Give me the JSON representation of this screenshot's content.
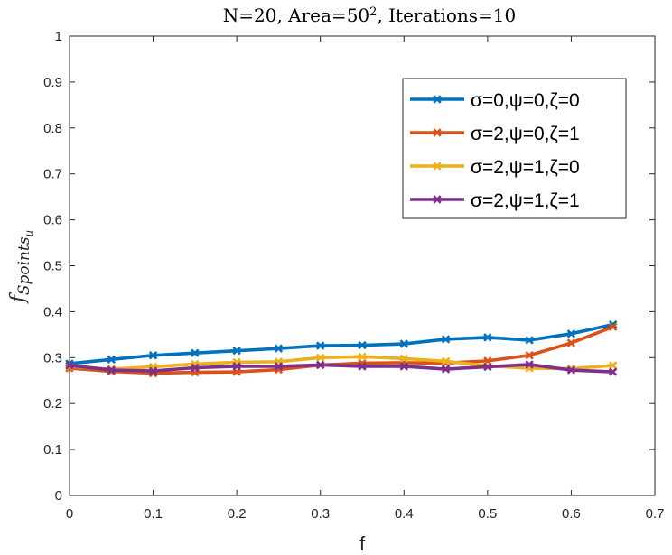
{
  "chart_data": {
    "type": "line",
    "title": "N=20, Area=50², Iterations=10",
    "xlabel": "f",
    "ylabel": "fSpoints_u",
    "xlim": [
      0,
      0.7
    ],
    "ylim": [
      0,
      1
    ],
    "x_ticks": [
      "0",
      "0.1",
      "0.2",
      "0.3",
      "0.4",
      "0.5",
      "0.6",
      "0.7"
    ],
    "y_ticks": [
      "0",
      "0.1",
      "0.2",
      "0.3",
      "0.4",
      "0.5",
      "0.6",
      "0.7",
      "0.8",
      "0.9",
      "1"
    ],
    "grid": false,
    "legend_position": "top-right",
    "x": [
      0,
      0.05,
      0.1,
      0.15,
      0.2,
      0.25,
      0.3,
      0.35,
      0.4,
      0.45,
      0.5,
      0.55,
      0.6,
      0.65
    ],
    "series": [
      {
        "name": "σ=0,ψ=0,ζ=0",
        "color": "#0072BD",
        "values": [
          0.287,
          0.296,
          0.305,
          0.31,
          0.315,
          0.32,
          0.326,
          0.327,
          0.33,
          0.34,
          0.344,
          0.338,
          0.352,
          0.372
        ]
      },
      {
        "name": "σ=2,ψ=0,ζ=1",
        "color": "#D95319",
        "values": [
          0.277,
          0.27,
          0.266,
          0.268,
          0.269,
          0.274,
          0.284,
          0.288,
          0.289,
          0.288,
          0.293,
          0.305,
          0.332,
          0.367
        ]
      },
      {
        "name": "σ=2,ψ=1,ζ=0",
        "color": "#EDB120",
        "values": [
          0.281,
          0.275,
          0.28,
          0.286,
          0.29,
          0.291,
          0.3,
          0.302,
          0.298,
          0.292,
          0.282,
          0.277,
          0.276,
          0.283
        ]
      },
      {
        "name": "σ=2,ψ=1,ζ=1",
        "color": "#7E2F8E",
        "values": [
          0.283,
          0.273,
          0.271,
          0.278,
          0.281,
          0.281,
          0.284,
          0.281,
          0.281,
          0.275,
          0.28,
          0.285,
          0.273,
          0.269
        ]
      }
    ]
  }
}
